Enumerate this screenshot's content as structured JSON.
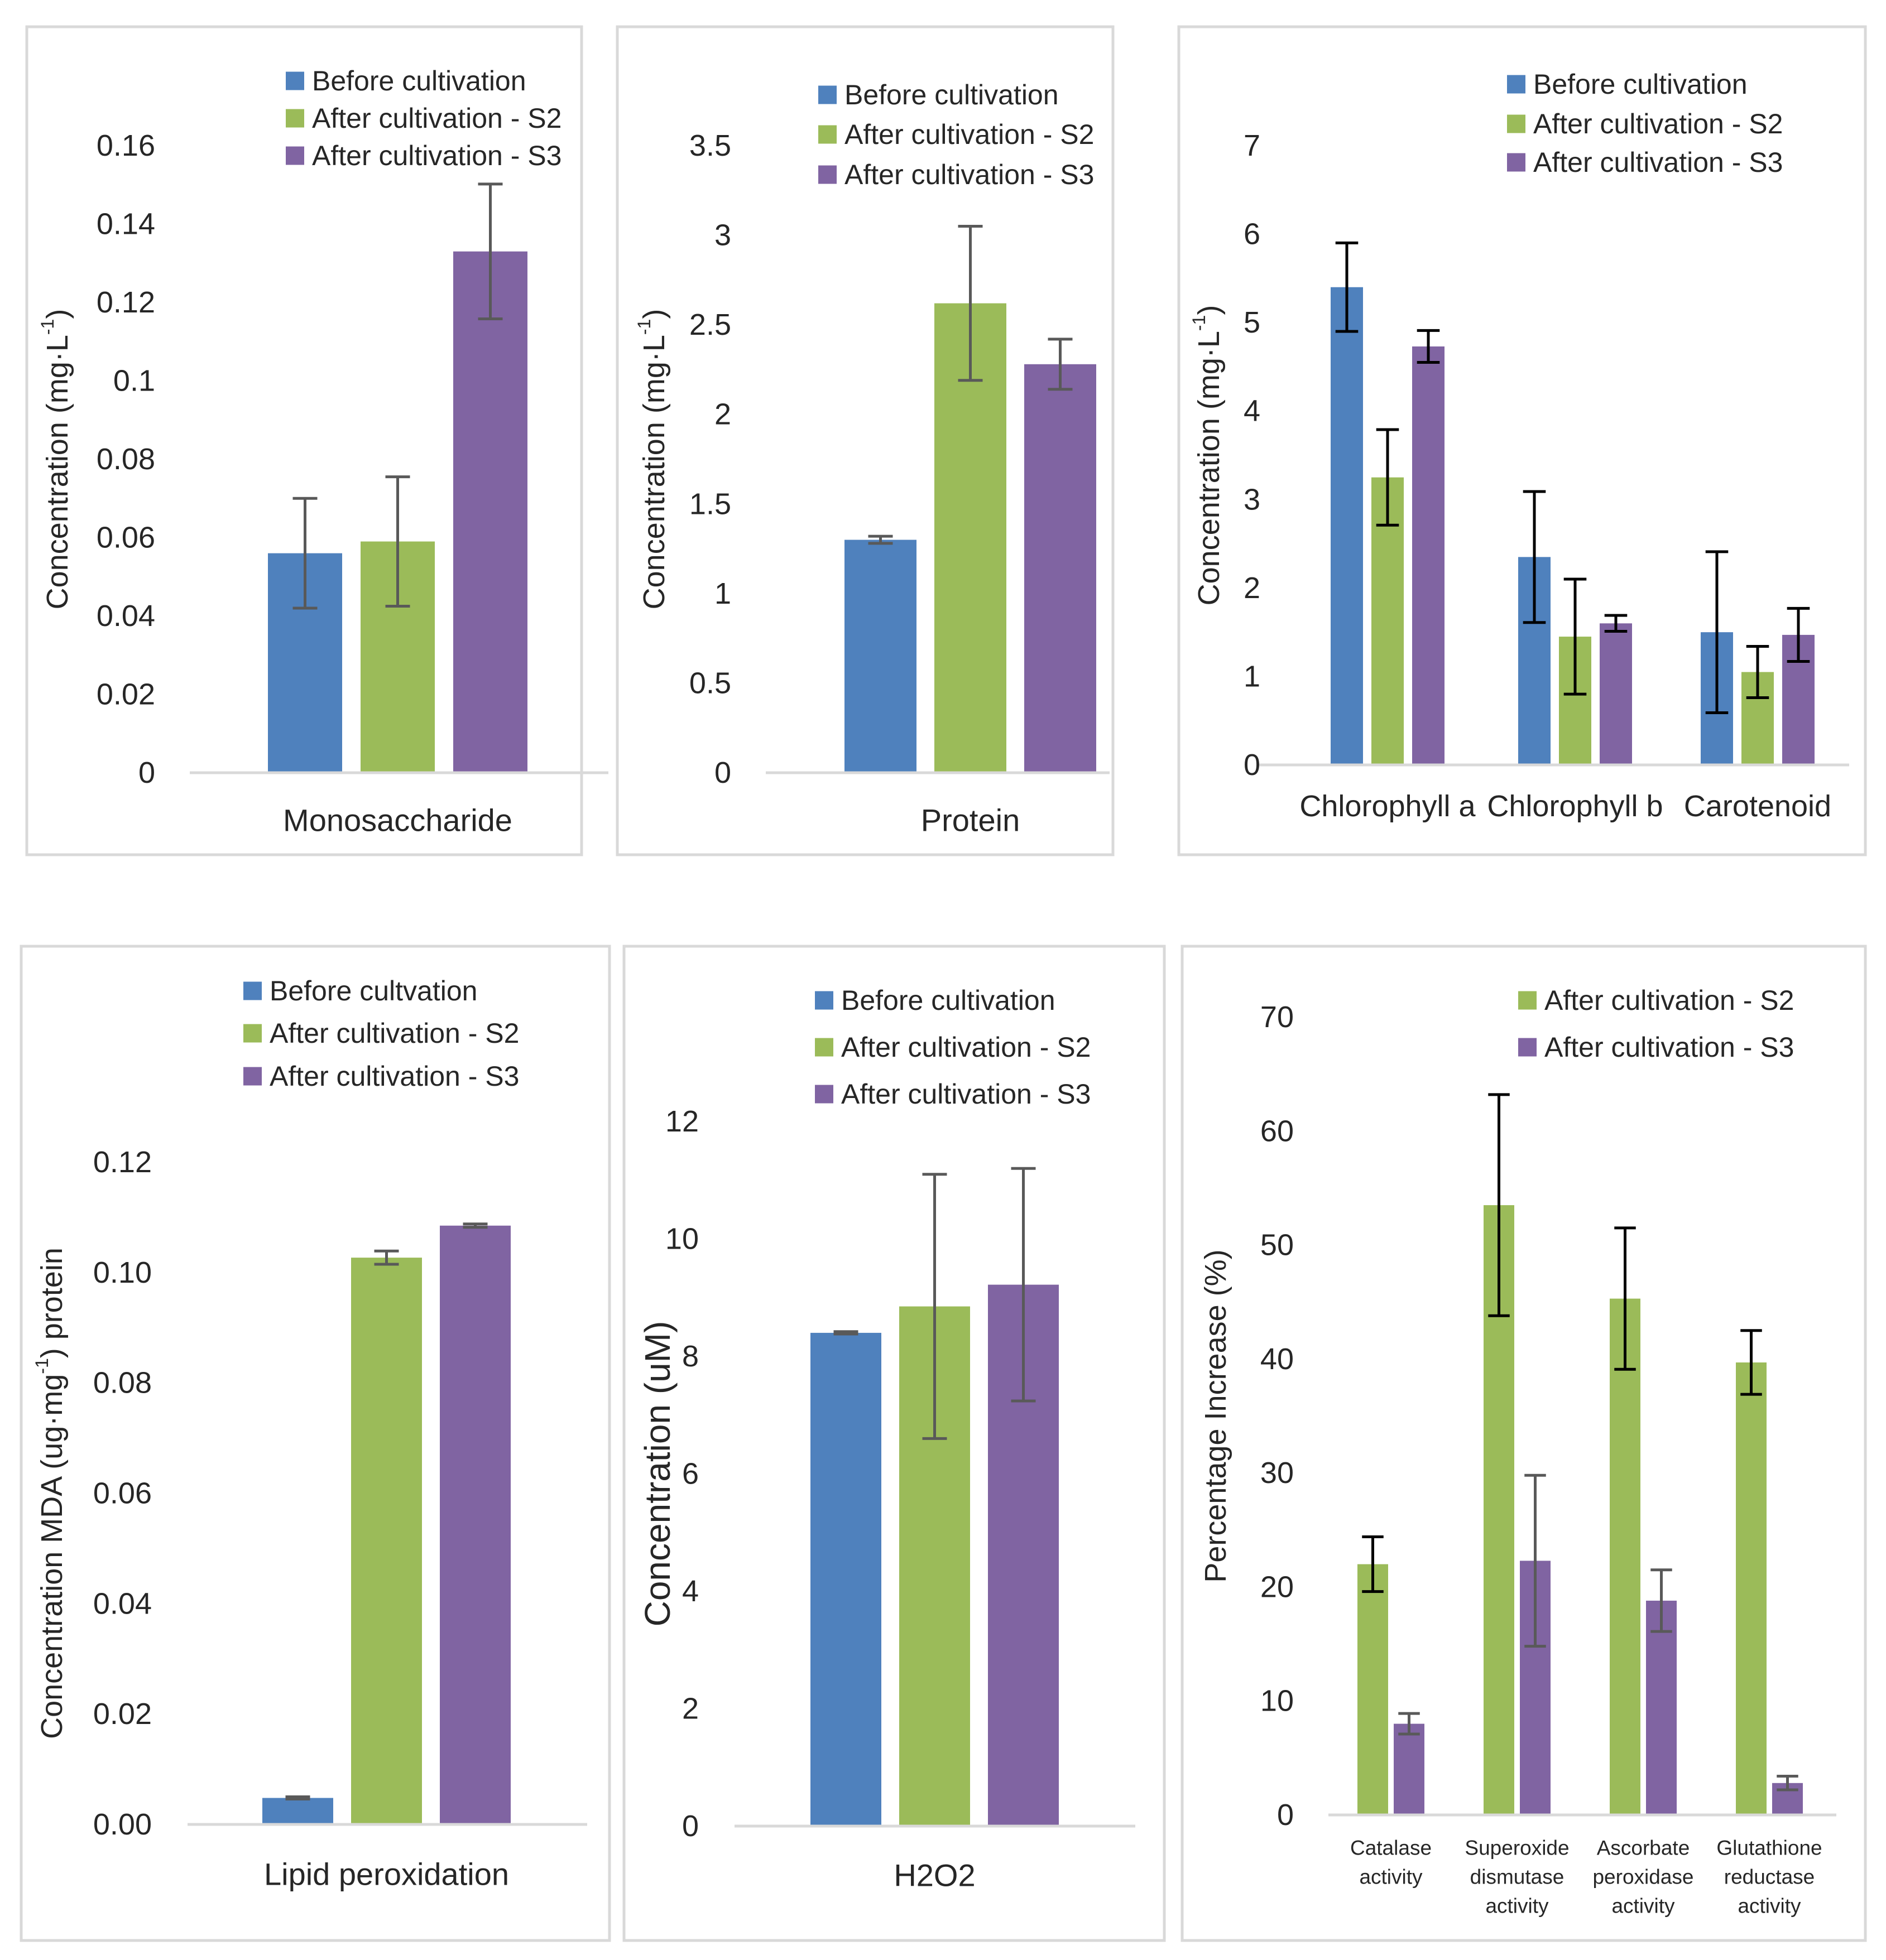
{
  "colors": {
    "before": "#4F81BD",
    "s2": "#9BBB59",
    "s3": "#8064A2",
    "axis": "#D9D9D9",
    "text": "#262626",
    "error_grey": "#595959",
    "error_black": "#000000",
    "panel_border": "#D9D9D9"
  },
  "chart_data": [
    {
      "type": "bar",
      "categories": [
        "Monosaccharide"
      ],
      "series": [
        {
          "name": "Before cultivation",
          "values": [
            0.056
          ],
          "errors": [
            0.014
          ],
          "color_key": "before"
        },
        {
          "name": "After cultivation - S2",
          "values": [
            0.059
          ],
          "errors": [
            0.0165
          ],
          "color_key": "s2"
        },
        {
          "name": "After cultivation - S3",
          "values": [
            0.133
          ],
          "errors": [
            0.0172
          ],
          "color_key": "s3"
        }
      ],
      "ylabel": "Concentration (mg·L",
      "ylabel_sup": "-1",
      "ylabel_tail": ")",
      "ylim": [
        0,
        0.16
      ],
      "ytick_values": [
        0,
        0.02,
        0.04,
        0.06,
        0.08,
        0.1,
        0.12,
        0.14,
        0.16
      ],
      "ytick_labels": [
        "0",
        "0.02",
        "0.04",
        "0.06",
        "0.08",
        "0.1",
        "0.12",
        "0.14",
        "0.16"
      ],
      "legend": [
        "Before cultivation",
        "After cultivation - S2",
        "After cultivation - S3"
      ],
      "legend_position": "top-right",
      "grid": false,
      "error_style": "grey"
    },
    {
      "type": "bar",
      "categories": [
        "Protein"
      ],
      "series": [
        {
          "name": "Before cultivation",
          "values": [
            1.3
          ],
          "errors": [
            0.02
          ],
          "color_key": "before"
        },
        {
          "name": "After cultivation - S2",
          "values": [
            2.62
          ],
          "errors": [
            0.43
          ],
          "color_key": "s2"
        },
        {
          "name": "After cultivation - S3",
          "values": [
            2.28
          ],
          "errors": [
            0.14
          ],
          "color_key": "s3"
        }
      ],
      "ylabel": "Concentration (mg·L",
      "ylabel_sup": "-1",
      "ylabel_tail": ")",
      "ylim": [
        0,
        3.5
      ],
      "ytick_values": [
        0,
        0.5,
        1,
        1.5,
        2,
        2.5,
        3,
        3.5
      ],
      "ytick_labels": [
        "0",
        "0.5",
        "1",
        "1.5",
        "2",
        "2.5",
        "3",
        "3.5"
      ],
      "legend": [
        "Before cultivation",
        "After cultivation - S2",
        "After cultivation - S3"
      ],
      "legend_position": "top-right",
      "grid": false,
      "error_style": "grey"
    },
    {
      "type": "bar",
      "categories": [
        "Chlorophyll a",
        "Chlorophyll b",
        "Carotenoid"
      ],
      "series": [
        {
          "name": "Before cultivation",
          "values": [
            5.4,
            2.35,
            1.5
          ],
          "errors": [
            0.5,
            0.74,
            0.91
          ],
          "color_key": "before"
        },
        {
          "name": "After cultivation - S2",
          "values": [
            3.25,
            1.45,
            1.05
          ],
          "errors": [
            0.54,
            0.65,
            0.29
          ],
          "color_key": "s2"
        },
        {
          "name": "After cultivation - S3",
          "values": [
            4.73,
            1.6,
            1.47
          ],
          "errors": [
            0.18,
            0.09,
            0.3
          ],
          "color_key": "s3"
        }
      ],
      "ylabel": "Concentration (mg·L",
      "ylabel_sup": "-1",
      "ylabel_tail": ")",
      "ylim": [
        0,
        7
      ],
      "ytick_values": [
        0,
        1,
        2,
        3,
        4,
        5,
        6,
        7
      ],
      "ytick_labels": [
        "0",
        "1",
        "2",
        "3",
        "4",
        "5",
        "6",
        "7"
      ],
      "legend": [
        "Before cultivation",
        "After cultivation - S2",
        "After cultivation - S3"
      ],
      "legend_position": "top-right",
      "grid": false,
      "error_style": "black"
    },
    {
      "type": "bar",
      "categories": [
        "Lipid peroxidation"
      ],
      "series": [
        {
          "name": "Before cultvation",
          "values": [
            0.0048
          ],
          "errors": [
            0.0002
          ],
          "color_key": "before"
        },
        {
          "name": "After cultivation - S2",
          "values": [
            0.1027
          ],
          "errors": [
            0.0012
          ],
          "color_key": "s2"
        },
        {
          "name": "After cultivation - S3",
          "values": [
            0.1085
          ],
          "errors": [
            0.0003
          ],
          "color_key": "s3"
        }
      ],
      "ylabel": "Concentration MDA (ug·mg",
      "ylabel_sup": "-1",
      "ylabel_tail": ") protein",
      "ylim": [
        0,
        0.12
      ],
      "ytick_values": [
        0,
        0.02,
        0.04,
        0.06,
        0.08,
        0.1,
        0.12
      ],
      "ytick_labels": [
        "0.00",
        "0.02",
        "0.04",
        "0.06",
        "0.08",
        "0.10",
        "0.12"
      ],
      "legend": [
        "Before cultvation",
        "After cultivation - S2",
        "After cultivation - S3"
      ],
      "legend_position": "top-right",
      "grid": false,
      "error_style": "grey"
    },
    {
      "type": "bar",
      "categories": [
        "H2O2"
      ],
      "series": [
        {
          "name": "Before cultivation",
          "values": [
            8.4
          ],
          "errors": [
            0.02
          ],
          "color_key": "before"
        },
        {
          "name": "After cultivation - S2",
          "values": [
            8.85
          ],
          "errors": [
            2.25
          ],
          "color_key": "s2"
        },
        {
          "name": "After cultivation - S3",
          "values": [
            9.22
          ],
          "errors": [
            1.98
          ],
          "color_key": "s3"
        }
      ],
      "ylabel": "Concentration (uM)",
      "ylabel_sup": "",
      "ylabel_tail": "",
      "ylim": [
        0,
        12
      ],
      "ytick_values": [
        0,
        2,
        4,
        6,
        8,
        10,
        12
      ],
      "ytick_labels": [
        "0",
        "2",
        "4",
        "6",
        "8",
        "10",
        "12"
      ],
      "legend": [
        "Before cultivation",
        "After cultivation - S2",
        "After cultivation - S3"
      ],
      "legend_position": "top-right",
      "grid": false,
      "error_style": "grey"
    },
    {
      "type": "bar",
      "categories": [
        [
          "Catalase",
          "activity"
        ],
        [
          "Superoxide",
          "dismutase",
          "activity"
        ],
        [
          "Ascorbate",
          "peroxidase",
          "activity"
        ],
        [
          "Glutathione",
          "reductase",
          "activity"
        ]
      ],
      "series": [
        {
          "name": "After cultivation - S2",
          "values": [
            22,
            53.5,
            45.3,
            39.7
          ],
          "errors": [
            2.4,
            9.7,
            6.2,
            2.8
          ],
          "color_key": "s2",
          "error_style": "black"
        },
        {
          "name": "After cultivation - S3",
          "values": [
            8,
            22.3,
            18.8,
            2.8
          ],
          "errors": [
            0.9,
            7.5,
            2.7,
            0.6
          ],
          "color_key": "s3",
          "error_style": "grey"
        }
      ],
      "ylabel": "Percentage Increase (%)",
      "ylabel_sup": "",
      "ylabel_tail": "",
      "ylim": [
        0,
        70
      ],
      "ytick_values": [
        0,
        10,
        20,
        30,
        40,
        50,
        60,
        70
      ],
      "ytick_labels": [
        "0",
        "10",
        "20",
        "30",
        "40",
        "50",
        "60",
        "70"
      ],
      "legend": [
        "After cultivation - S2",
        "After cultivation - S3"
      ],
      "legend_position": "top-right",
      "grid": false
    }
  ]
}
